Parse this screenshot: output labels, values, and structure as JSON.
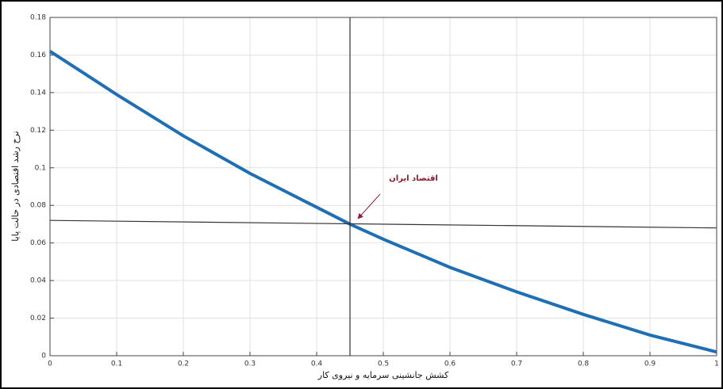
{
  "chart_data": {
    "type": "line",
    "x_label": "کشش جانشینی سرمایه و نیروی کار",
    "y_label": "نرخ رشد اقتصادی در حالت پایا",
    "xlim": [
      0,
      1
    ],
    "xticks": [
      0,
      0.1,
      0.2,
      0.3,
      0.4,
      0.5,
      0.6,
      0.7,
      0.8,
      0.9,
      1
    ],
    "ylim": [
      0,
      0.18
    ],
    "yticks": [
      0,
      0.02,
      0.04,
      0.06,
      0.08,
      0.1,
      0.12,
      0.14,
      0.16,
      0.18
    ],
    "grid": true,
    "series": [
      {
        "color": "#1f6fb5",
        "x": [
          0,
          0.1,
          0.2,
          0.3,
          0.4,
          0.45,
          0.5,
          0.6,
          0.7,
          0.8,
          0.9,
          1
        ],
        "values": [
          0.162,
          0.139,
          0.117,
          0.097,
          0.079,
          0.07,
          0.062,
          0.047,
          0.034,
          0.022,
          0.011,
          0.002
        ]
      },
      {
        "color": "#333333",
        "x": [
          0,
          1
        ],
        "values": [
          0.072,
          0.068
        ]
      },
      {
        "color": "#333333",
        "x": [
          0.45,
          0.45
        ],
        "values": [
          0,
          0.18
        ]
      }
    ],
    "annotations": [
      {
        "text": "اقتصاد ایران",
        "x": 0.45,
        "y": 0.07,
        "color": "#8b1a2b"
      }
    ]
  }
}
